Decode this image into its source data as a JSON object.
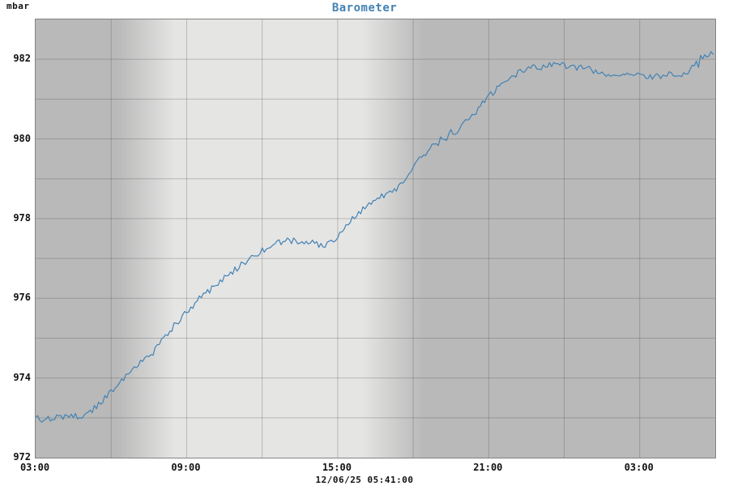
{
  "title": "Barometer",
  "unit_label": "mbar",
  "footer_timestamp": "12/06/25 05:41:00",
  "colors": {
    "accent_blue": "#4282b4",
    "line": "#4282b4",
    "night_bg": "#b9b9b9",
    "day_bg": "#e5e5e4",
    "gridline_rgba": "rgba(70,70,70,0.28)",
    "plot_border": "#828282",
    "text": "#111111",
    "page_bg": "#ffffff"
  },
  "chart_data": {
    "type": "line",
    "title": "Barometer",
    "ylabel": "mbar",
    "xlabel": "",
    "legend": "none",
    "grid": true,
    "series_name": "barometer-pressure",
    "x_domain_hours": [
      3,
      30
    ],
    "x_tick_hours": [
      3,
      9,
      15,
      21,
      27
    ],
    "x_tick_labels": [
      "03:00",
      "09:00",
      "15:00",
      "21:00",
      "03:00"
    ],
    "x_gridline_hours": [
      6,
      9,
      12,
      15,
      18,
      21,
      24,
      27
    ],
    "ylim": [
      972,
      983
    ],
    "y_tick_values": [
      972,
      974,
      976,
      978,
      980,
      982
    ],
    "y_gridline_values": [
      973,
      974,
      975,
      976,
      977,
      978,
      979,
      980,
      981,
      982
    ],
    "daylight_band_pct": {
      "night_end": 12,
      "day_start": 20.5,
      "day_end": 48,
      "night_start": 57
    },
    "noise_mbar": 0.08,
    "sample_minutes": 5,
    "line_end_hour": 29.95,
    "points": [
      [
        3.0,
        973.05
      ],
      [
        3.3,
        972.95
      ],
      [
        3.7,
        973.0
      ],
      [
        4.2,
        973.0
      ],
      [
        4.8,
        973.05
      ],
      [
        5.2,
        973.15
      ],
      [
        5.6,
        973.4
      ],
      [
        6.0,
        973.65
      ],
      [
        6.5,
        974.0
      ],
      [
        7.0,
        974.3
      ],
      [
        7.5,
        974.6
      ],
      [
        8.0,
        974.95
      ],
      [
        8.5,
        975.3
      ],
      [
        9.0,
        975.65
      ],
      [
        9.5,
        976.0
      ],
      [
        10.0,
        976.25
      ],
      [
        10.5,
        976.5
      ],
      [
        11.0,
        976.75
      ],
      [
        11.5,
        977.0
      ],
      [
        12.0,
        977.15
      ],
      [
        12.5,
        977.35
      ],
      [
        13.0,
        977.45
      ],
      [
        13.5,
        977.4
      ],
      [
        14.0,
        977.4
      ],
      [
        14.3,
        977.3
      ],
      [
        14.7,
        977.4
      ],
      [
        15.0,
        977.55
      ],
      [
        15.5,
        977.95
      ],
      [
        16.0,
        978.25
      ],
      [
        16.5,
        978.5
      ],
      [
        17.0,
        978.6
      ],
      [
        17.5,
        978.85
      ],
      [
        18.0,
        979.3
      ],
      [
        18.5,
        979.65
      ],
      [
        19.0,
        979.9
      ],
      [
        19.5,
        980.1
      ],
      [
        20.0,
        980.35
      ],
      [
        20.5,
        980.7
      ],
      [
        21.0,
        981.05
      ],
      [
        21.5,
        981.4
      ],
      [
        22.0,
        981.6
      ],
      [
        22.5,
        981.75
      ],
      [
        23.0,
        981.8
      ],
      [
        23.5,
        981.85
      ],
      [
        24.0,
        981.85
      ],
      [
        24.5,
        981.8
      ],
      [
        25.0,
        981.75
      ],
      [
        25.5,
        981.65
      ],
      [
        26.0,
        981.6
      ],
      [
        26.5,
        981.65
      ],
      [
        27.0,
        981.65
      ],
      [
        27.3,
        981.55
      ],
      [
        27.7,
        981.6
      ],
      [
        28.0,
        981.55
      ],
      [
        28.3,
        981.65
      ],
      [
        28.6,
        981.6
      ],
      [
        28.9,
        981.7
      ],
      [
        29.2,
        981.85
      ],
      [
        29.6,
        982.05
      ],
      [
        29.95,
        982.2
      ]
    ]
  }
}
